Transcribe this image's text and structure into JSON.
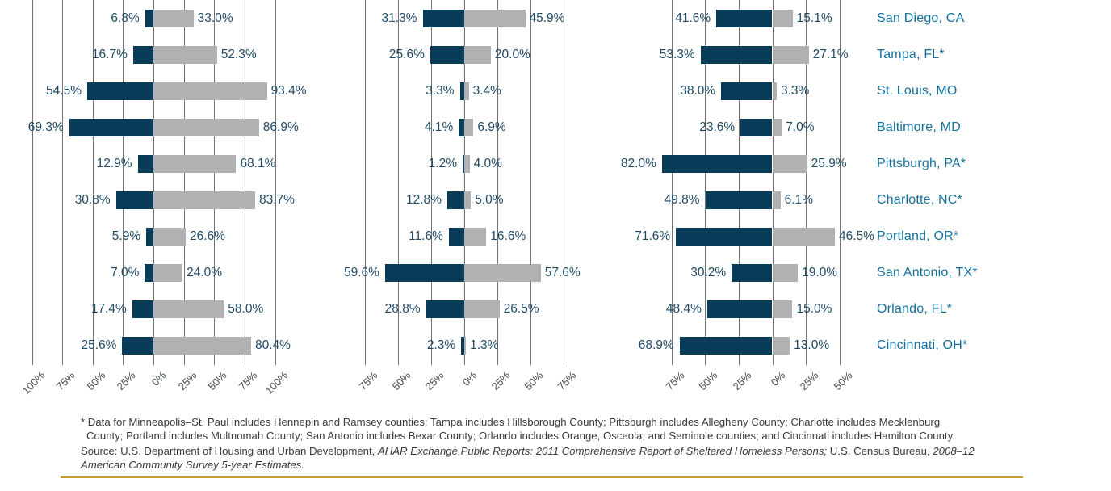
{
  "colors": {
    "bar_dark": "#083c58",
    "bar_gray": "#b1b1b4",
    "gridline": "#717171",
    "value_label": "#1f4a66",
    "axis_label": "#454c52",
    "city_label": "#12719e",
    "gold_rule": "#c79a2b",
    "note_text": "#3a3a3a"
  },
  "chart_data": {
    "type": "bar",
    "subtype": "diverging horizontal paired bars; dark navy bars extend left of the 0% axis, gray bars extend right; three side-by-side panels share one row list of cities",
    "legend": "not visible in crop",
    "grid": true,
    "categories": [
      "San Diego, CA",
      "Tampa, FL*",
      "St. Louis, MO",
      "Baltimore, MD",
      "Pittsburgh, PA*",
      "Charlotte, NC*",
      "Portland, OR*",
      "San Antonio, TX*",
      "Orlando, FL*",
      "Cincinnati, OH*"
    ],
    "panels": [
      {
        "tick_values": [
          -100,
          -75,
          -50,
          -25,
          0,
          25,
          50,
          75,
          100
        ],
        "tick_labels": [
          "100%",
          "75%",
          "50%",
          "25%",
          "0%",
          "25%",
          "50%",
          "75%",
          "100%"
        ],
        "series": [
          {
            "name": "dark_left",
            "values": [
              6.8,
              16.7,
              54.5,
              69.3,
              12.9,
              30.8,
              5.9,
              7.0,
              17.4,
              25.6
            ]
          },
          {
            "name": "gray_right",
            "values": [
              33.0,
              52.3,
              93.4,
              86.9,
              68.1,
              83.7,
              26.6,
              24.0,
              58.0,
              80.4
            ]
          }
        ]
      },
      {
        "tick_values": [
          -75,
          -50,
          -25,
          0,
          25,
          50,
          75
        ],
        "tick_labels": [
          "75%",
          "50%",
          "25%",
          "0%",
          "25%",
          "50%",
          "75%"
        ],
        "series": [
          {
            "name": "dark_left",
            "values": [
              31.3,
              25.6,
              3.3,
              4.1,
              1.2,
              12.8,
              11.6,
              59.6,
              28.8,
              2.3
            ]
          },
          {
            "name": "gray_right",
            "values": [
              45.9,
              20.0,
              3.4,
              6.9,
              4.0,
              5.0,
              16.6,
              57.6,
              26.5,
              1.3
            ]
          }
        ]
      },
      {
        "tick_values": [
          -75,
          -50,
          -25,
          0,
          25,
          50
        ],
        "tick_labels": [
          "75%",
          "50%",
          "25%",
          "0%",
          "25%",
          "50%"
        ],
        "series": [
          {
            "name": "dark_left",
            "values": [
              41.6,
              53.3,
              38.0,
              23.6,
              82.0,
              49.8,
              71.6,
              30.2,
              48.4,
              68.9
            ]
          },
          {
            "name": "gray_right",
            "values": [
              15.1,
              27.1,
              3.3,
              7.0,
              25.9,
              6.1,
              46.5,
              19.0,
              15.0,
              13.0
            ]
          }
        ]
      }
    ]
  },
  "notes": {
    "footnote_lines": [
      "* Data for Minneapolis–St. Paul includes Hennepin and Ramsey counties; Tampa includes Hillsborough County; Pittsburgh includes Allegheny County; Charlotte includes Mecklenburg",
      "County; Portland includes Multnomah County; San Antonio includes Bexar County; Orlando includes Orange, Osceola, and Seminole counties; and Cincinnati includes Hamilton County."
    ],
    "source_lines": [
      [
        {
          "text": "Source: U.S. Department of Housing and Urban Development, ",
          "italic": false
        },
        {
          "text": "AHAR Exchange Public Reports: 2011 Comprehensive Report of Sheltered Homeless Persons; ",
          "italic": true
        },
        {
          "text": "U.S. Census Bureau, ",
          "italic": false
        },
        {
          "text": "2008–12",
          "italic": true
        }
      ],
      [
        {
          "text": "American Community Survey 5-year Estimates.",
          "italic": true
        }
      ]
    ]
  }
}
